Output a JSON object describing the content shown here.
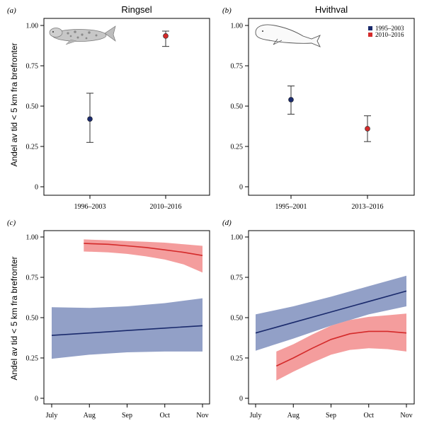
{
  "figure": {
    "ylabel": "Andel av tid < 5 km fra brefronter"
  },
  "chart_data": [
    {
      "id": "a",
      "type": "scatter",
      "panel_label": "(a)",
      "title": "Ringsel",
      "icon": "ringed-seal-icon",
      "categories": [
        "1996–2003",
        "2010–2016"
      ],
      "points": [
        {
          "category": "1996–2003",
          "value": 0.42,
          "lower": 0.275,
          "upper": 0.58,
          "color": "#1a2a6c"
        },
        {
          "category": "2010–2016",
          "value": 0.935,
          "lower": 0.87,
          "upper": 0.965,
          "color": "#d42a2a"
        }
      ],
      "ylim": [
        0,
        1
      ],
      "yticks": [
        "0",
        "0.25",
        "0.50",
        "0.75",
        "1.00"
      ],
      "ytick_values": [
        0,
        0.25,
        0.5,
        0.75,
        1
      ]
    },
    {
      "id": "b",
      "type": "scatter",
      "panel_label": "(b)",
      "title": "Hvithval",
      "icon": "beluga-whale-icon",
      "categories": [
        "1995–2001",
        "2013–2016"
      ],
      "points": [
        {
          "category": "1995–2001",
          "value": 0.54,
          "lower": 0.45,
          "upper": 0.625,
          "color": "#1a2a6c"
        },
        {
          "category": "2013–2016",
          "value": 0.36,
          "lower": 0.28,
          "upper": 0.44,
          "color": "#d42a2a"
        }
      ],
      "legend": [
        {
          "label": "1995–2003",
          "color": "#1a2a6c"
        },
        {
          "label": "2010–2016",
          "color": "#d42a2a"
        }
      ],
      "legend_position": "top-right",
      "ylim": [
        0,
        1
      ],
      "yticks": [
        "0",
        "0.25",
        "0.50",
        "0.75",
        "1.00"
      ],
      "ytick_values": [
        0,
        0.25,
        0.5,
        0.75,
        1
      ]
    },
    {
      "id": "c",
      "type": "line",
      "panel_label": "(c)",
      "xticks": [
        "July",
        "Aug",
        "Sep",
        "Oct",
        "Nov"
      ],
      "xlim": [
        0,
        4
      ],
      "ylim": [
        0,
        1.05
      ],
      "yticks": [
        "0",
        "0.25",
        "0.50",
        "0.75",
        "1.00"
      ],
      "ytick_values": [
        0,
        0.25,
        0.5,
        0.75,
        1
      ],
      "series": [
        {
          "color": "#1a2a6c",
          "band_color": "#7f8fbd",
          "x": [
            0,
            1,
            2,
            3,
            4
          ],
          "y": [
            0.39,
            0.405,
            0.42,
            0.435,
            0.45
          ],
          "lower": [
            0.245,
            0.27,
            0.285,
            0.29,
            0.29
          ],
          "upper": [
            0.565,
            0.56,
            0.57,
            0.59,
            0.62
          ]
        },
        {
          "color": "#d42a2a",
          "band_color": "#f28c8c",
          "x": [
            0.85,
            1.5,
            2,
            2.5,
            3,
            3.5,
            4
          ],
          "y": [
            0.96,
            0.955,
            0.945,
            0.935,
            0.92,
            0.905,
            0.885
          ],
          "lower": [
            0.91,
            0.905,
            0.895,
            0.88,
            0.86,
            0.83,
            0.78
          ],
          "upper": [
            0.985,
            0.98,
            0.975,
            0.97,
            0.965,
            0.955,
            0.945
          ]
        }
      ]
    },
    {
      "id": "d",
      "type": "line",
      "panel_label": "(d)",
      "xticks": [
        "July",
        "Aug",
        "Sep",
        "Oct",
        "Nov"
      ],
      "xlim": [
        0,
        4
      ],
      "ylim": [
        0,
        1.05
      ],
      "yticks": [
        "0",
        "0.25",
        "0.50",
        "0.75",
        "1.00"
      ],
      "ytick_values": [
        0,
        0.25,
        0.5,
        0.75,
        1
      ],
      "series": [
        {
          "color": "#1a2a6c",
          "band_color": "#7f8fbd",
          "x": [
            0,
            1,
            2,
            3,
            4
          ],
          "y": [
            0.405,
            0.47,
            0.535,
            0.6,
            0.665
          ],
          "lower": [
            0.295,
            0.37,
            0.45,
            0.52,
            0.57
          ],
          "upper": [
            0.52,
            0.57,
            0.63,
            0.695,
            0.76
          ]
        },
        {
          "color": "#d42a2a",
          "band_color": "#f28c8c",
          "x": [
            0.55,
            1,
            1.5,
            2,
            2.5,
            3,
            3.5,
            4
          ],
          "y": [
            0.2,
            0.25,
            0.31,
            0.365,
            0.4,
            0.415,
            0.415,
            0.405
          ],
          "lower": [
            0.11,
            0.165,
            0.22,
            0.27,
            0.3,
            0.31,
            0.305,
            0.29
          ],
          "upper": [
            0.29,
            0.335,
            0.395,
            0.45,
            0.485,
            0.505,
            0.515,
            0.525
          ]
        }
      ]
    }
  ]
}
